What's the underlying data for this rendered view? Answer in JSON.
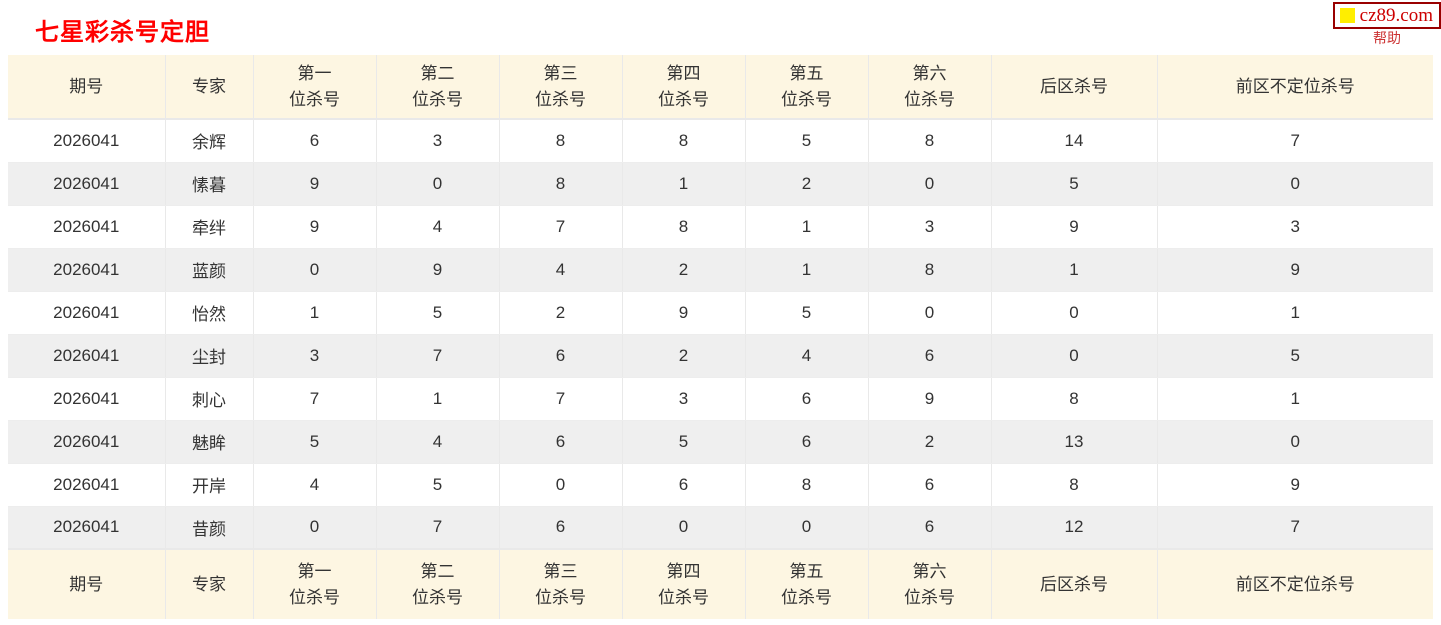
{
  "page": {
    "title": "七星彩杀号定胆",
    "title_color": "#ff0000"
  },
  "sitebar": {
    "logo_text": "cz89.com",
    "logo_text_color": "#cc0000",
    "logo_square_color": "#ffee00",
    "logo_border_color": "#990000",
    "help_label": "帮助",
    "help_color": "#cc3333"
  },
  "table": {
    "columns": [
      {
        "id": "period",
        "lines": [
          "期号"
        ]
      },
      {
        "id": "expert",
        "lines": [
          "专家"
        ]
      },
      {
        "id": "pos1",
        "lines": [
          "第一",
          "位杀号"
        ]
      },
      {
        "id": "pos2",
        "lines": [
          "第二",
          "位杀号"
        ]
      },
      {
        "id": "pos3",
        "lines": [
          "第三",
          "位杀号"
        ]
      },
      {
        "id": "pos4",
        "lines": [
          "第四",
          "位杀号"
        ]
      },
      {
        "id": "pos5",
        "lines": [
          "第五",
          "位杀号"
        ]
      },
      {
        "id": "pos6",
        "lines": [
          "第六",
          "位杀号"
        ]
      },
      {
        "id": "backzone",
        "lines": [
          "后区杀号"
        ]
      },
      {
        "id": "frontzone",
        "lines": [
          "前区不定位杀号"
        ]
      }
    ],
    "rows": [
      {
        "period": "2026041",
        "expert": "余辉",
        "values": [
          "6",
          "3",
          "8",
          "8",
          "5",
          "8",
          "14",
          "7"
        ]
      },
      {
        "period": "2026041",
        "expert": "愫暮",
        "values": [
          "9",
          "0",
          "8",
          "1",
          "2",
          "0",
          "5",
          "0"
        ]
      },
      {
        "period": "2026041",
        "expert": "牵绊",
        "values": [
          "9",
          "4",
          "7",
          "8",
          "1",
          "3",
          "9",
          "3"
        ]
      },
      {
        "period": "2026041",
        "expert": "蓝颜",
        "values": [
          "0",
          "9",
          "4",
          "2",
          "1",
          "8",
          "1",
          "9"
        ]
      },
      {
        "period": "2026041",
        "expert": "怡然",
        "values": [
          "1",
          "5",
          "2",
          "9",
          "5",
          "0",
          "0",
          "1"
        ]
      },
      {
        "period": "2026041",
        "expert": "尘封",
        "values": [
          "3",
          "7",
          "6",
          "2",
          "4",
          "6",
          "0",
          "5"
        ]
      },
      {
        "period": "2026041",
        "expert": "刺心",
        "values": [
          "7",
          "1",
          "7",
          "3",
          "6",
          "9",
          "8",
          "1"
        ]
      },
      {
        "period": "2026041",
        "expert": "魅眸",
        "values": [
          "5",
          "4",
          "6",
          "5",
          "6",
          "2",
          "13",
          "0"
        ]
      },
      {
        "period": "2026041",
        "expert": "开岸",
        "values": [
          "4",
          "5",
          "0",
          "6",
          "8",
          "6",
          "8",
          "9"
        ]
      },
      {
        "period": "2026041",
        "expert": "昔颜",
        "values": [
          "0",
          "7",
          "6",
          "0",
          "0",
          "6",
          "12",
          "7"
        ]
      }
    ]
  },
  "colors": {
    "header_bg": "#fdf6e2",
    "stripe_bg": "#efefef",
    "cell_border": "#e9e9e9",
    "text": "#333333"
  }
}
